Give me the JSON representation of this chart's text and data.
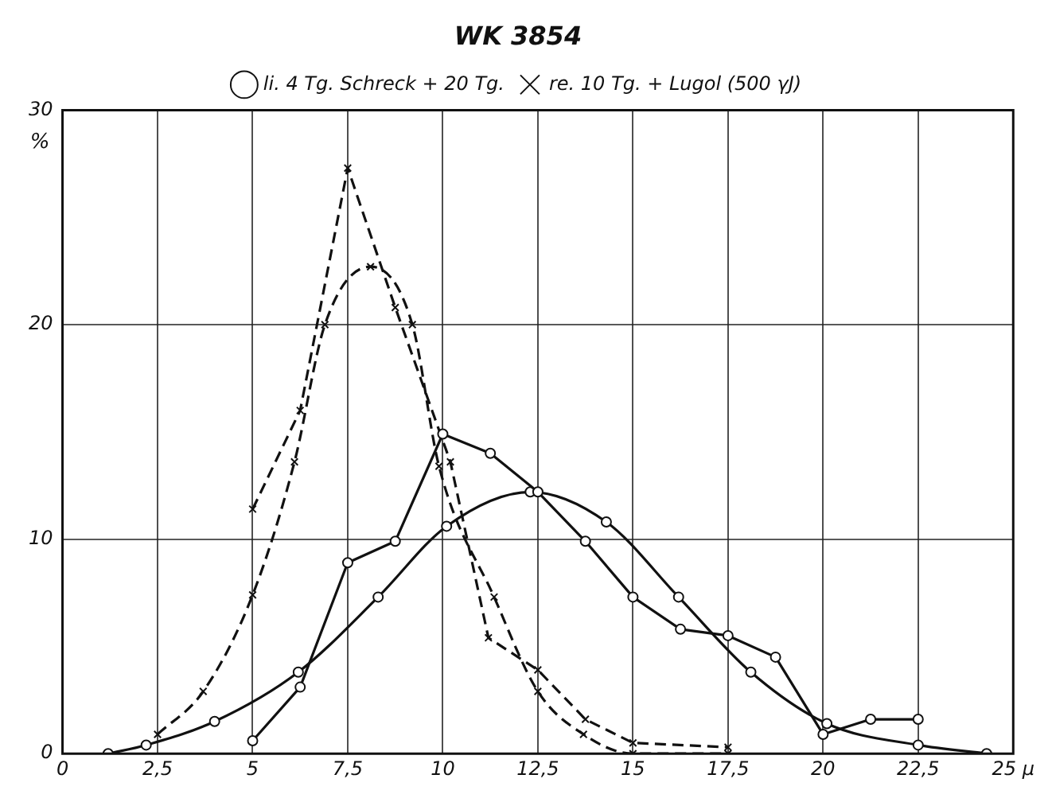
{
  "chart_data": {
    "type": "line",
    "title": "WK 3854",
    "ylabel": "%",
    "xlim": [
      0,
      25
    ],
    "xticks": [
      0,
      {
        "value": 2.5,
        "label": "2,5"
      },
      5,
      {
        "value": 7.5,
        "label": "7,5"
      },
      10,
      {
        "value": 12.5,
        "label": "12,5"
      },
      15,
      {
        "value": 17.5,
        "label": "17,5"
      },
      20,
      {
        "value": 22.5,
        "label": "22,5"
      },
      {
        "value": 25,
        "label": "25 μ"
      }
    ],
    "ylim": [
      0,
      30
    ],
    "yticks": [
      0,
      10,
      20,
      30
    ],
    "grid": true,
    "legend": "top",
    "series": [
      {
        "name": "li. 4 Tg. Schreck + 20 Tg.",
        "color": "#111111",
        "line_style": "solid",
        "marker": "circle",
        "x": [
          5,
          6.25,
          7.5,
          8.75,
          10,
          11.25,
          12.5,
          13.75,
          15,
          16.25,
          17.5,
          18.75,
          20,
          21.25,
          22.5
        ],
        "values": [
          0.6,
          3.1,
          8.9,
          9.9,
          14.9,
          14.0,
          12.2,
          9.9,
          7.3,
          5.8,
          5.5,
          4.5,
          0.9,
          1.6,
          1.6
        ]
      },
      {
        "color": "#111111",
        "line_style": "solid",
        "marker": "circle",
        "x": [
          1.2,
          2.2,
          4.0,
          6.2,
          8.3,
          10.1,
          12.3,
          14.3,
          16.2,
          18.1,
          20.1,
          22.5,
          24.3
        ],
        "values": [
          0,
          0.4,
          1.5,
          3.8,
          7.3,
          10.6,
          12.2,
          10.8,
          7.3,
          3.8,
          1.4,
          0.4,
          0
        ]
      },
      {
        "name": "re. 10 Tg. + Lugol (500 γJ)",
        "color": "#111111",
        "line_style": "dashed",
        "marker": "cross",
        "x": [
          5,
          6.25,
          7.5,
          8.75,
          10.2,
          11.2,
          12.5,
          13.75,
          15,
          17.5
        ],
        "values": [
          11.4,
          16,
          27.3,
          20.8,
          13.6,
          5.4,
          3.9,
          1.6,
          0.5,
          0.3
        ]
      },
      {
        "color": "#111111",
        "line_style": "dashed",
        "marker": "cross",
        "x": [
          2.5,
          3.7,
          5,
          6.1,
          6.9,
          8.1,
          9.2,
          9.9,
          11.35,
          12.5,
          13.7,
          15,
          17.5
        ],
        "values": [
          0.9,
          2.9,
          7.4,
          13.6,
          20,
          22.7,
          20,
          13.4,
          7.3,
          2.9,
          0.9,
          0,
          0
        ]
      }
    ]
  }
}
